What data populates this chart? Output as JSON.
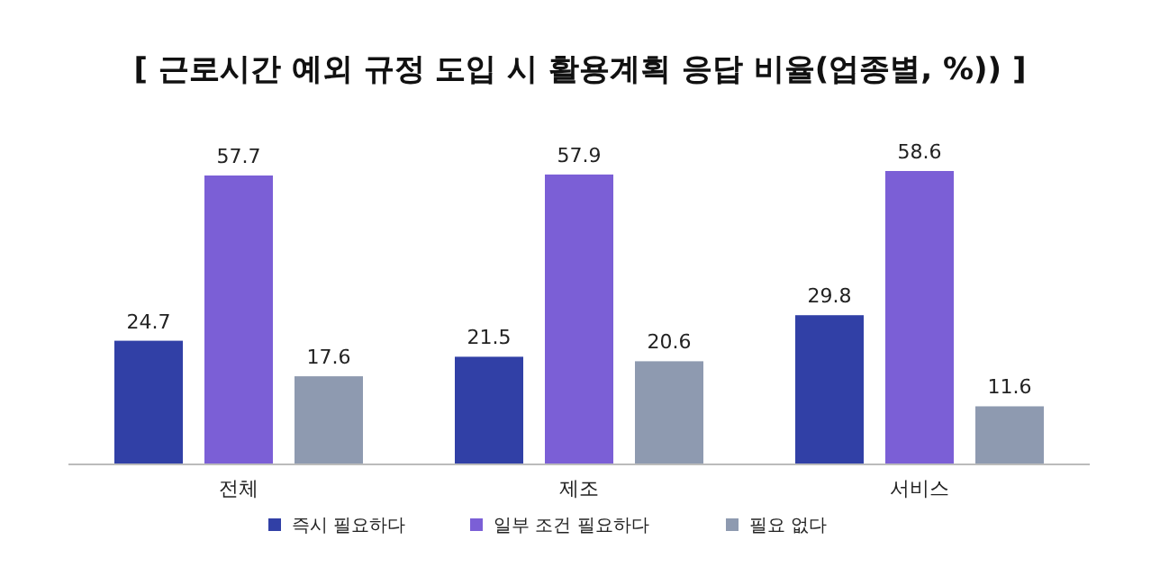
{
  "chart_data": {
    "type": "bar",
    "title": "[ 근로시간 예외 규정 도입 시 활용계획 응답 비율(업종별, %)) ]",
    "categories": [
      "전체",
      "제조",
      "서비스"
    ],
    "series": [
      {
        "name": "즉시 필요하다",
        "color": "#3140a6",
        "values": [
          24.7,
          21.5,
          29.8
        ]
      },
      {
        "name": "일부 조건 필요하다",
        "color": "#7b5fd6",
        "values": [
          57.7,
          57.9,
          58.6
        ]
      },
      {
        "name": "필요 없다",
        "color": "#8e9ab0",
        "values": [
          17.6,
          20.6,
          11.6
        ]
      }
    ],
    "data_labels": true,
    "legend": "bottom"
  }
}
